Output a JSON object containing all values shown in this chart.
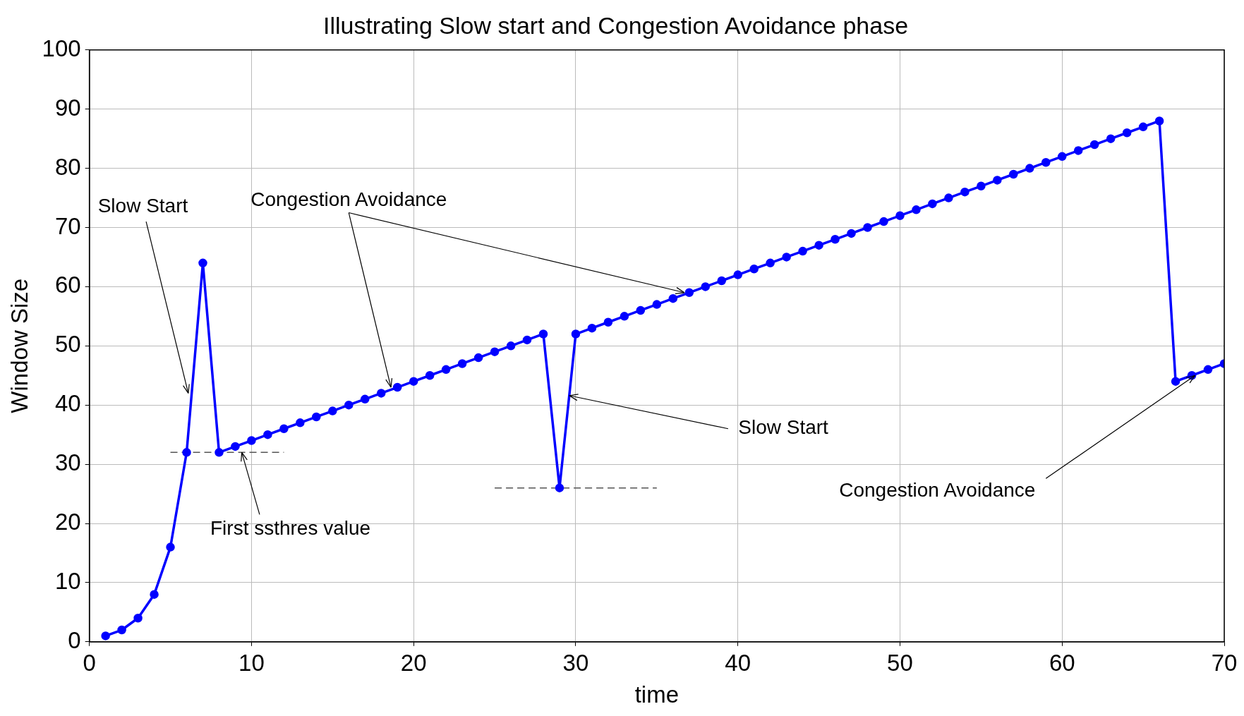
{
  "chart_data": {
    "type": "line",
    "title": "Illustrating Slow start and Congestion Avoidance phase",
    "xlabel": "time",
    "ylabel": "Window Size",
    "x": [
      1,
      2,
      3,
      4,
      5,
      6,
      7,
      8,
      9,
      10,
      11,
      12,
      13,
      14,
      15,
      16,
      17,
      18,
      19,
      20,
      21,
      22,
      23,
      24,
      25,
      26,
      27,
      28,
      29,
      30,
      31,
      32,
      33,
      34,
      35,
      36,
      37,
      38,
      39,
      40,
      41,
      42,
      43,
      44,
      45,
      46,
      47,
      48,
      49,
      50,
      51,
      52,
      53,
      54,
      55,
      56,
      57,
      58,
      59,
      60,
      61,
      62,
      63,
      64,
      65,
      66,
      67,
      68,
      69,
      70
    ],
    "series": [
      {
        "color": "#0000ff",
        "marker": "circle",
        "line_style": "solid",
        "values": [
          1,
          2,
          4,
          8,
          16,
          32,
          64,
          32,
          33,
          34,
          35,
          36,
          37,
          38,
          39,
          40,
          41,
          42,
          43,
          44,
          45,
          46,
          47,
          48,
          49,
          50,
          51,
          52,
          26,
          52,
          53,
          54,
          55,
          56,
          57,
          58,
          59,
          60,
          61,
          62,
          63,
          64,
          65,
          66,
          67,
          68,
          69,
          70,
          71,
          72,
          73,
          74,
          75,
          76,
          77,
          78,
          79,
          80,
          81,
          82,
          83,
          84,
          85,
          86,
          87,
          88,
          44,
          45,
          46,
          47
        ]
      },
      {
        "type": "line",
        "color": "#555555",
        "marker": "none",
        "line_style": "dashed",
        "x": [
          5,
          12
        ],
        "values": [
          32,
          32
        ]
      },
      {
        "type": "line",
        "color": "#555555",
        "marker": "none",
        "line_style": "dashed",
        "x": [
          25,
          35
        ],
        "values": [
          26,
          26
        ]
      }
    ],
    "xlim": [
      0,
      70
    ],
    "xticks": [
      0,
      10,
      20,
      30,
      40,
      50,
      60,
      70
    ],
    "ylim": [
      0,
      100
    ],
    "yticks": [
      0,
      10,
      20,
      30,
      40,
      50,
      60,
      70,
      80,
      90,
      100
    ],
    "grid": true,
    "legend": false,
    "annotations": [
      {
        "text": "Slow Start",
        "x": 6.1,
        "y": 42
      },
      {
        "text": "Congestion Avoidance",
        "x": 18.6,
        "y": 43
      },
      {
        "text": "Slow Start",
        "x": 29.6,
        "y": 41.6
      },
      {
        "text": "Congestion Avoidance",
        "x": 68.2,
        "y": 45
      },
      {
        "text": "First ssthres value",
        "x": 9.4,
        "y": 32
      }
    ]
  }
}
